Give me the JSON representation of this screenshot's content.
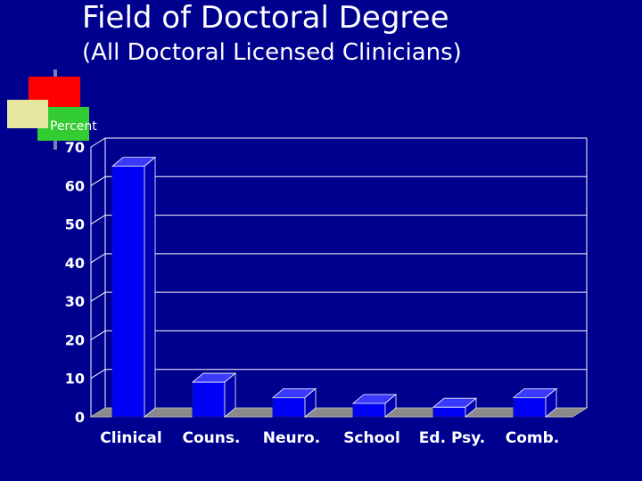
{
  "slide": {
    "title": "Field of Doctoral Degree",
    "subtitle": "(All Doctoral Licensed Clinicians)"
  },
  "colors": {
    "background": "#00008f",
    "bar_front": "#0000f5",
    "bar_top": "#3a3aff",
    "bar_side": "#0000b0",
    "floor": "#8a8a8a",
    "logo_red": "#ff0000",
    "logo_yellow": "#ffff66",
    "logo_green": "#33cc33"
  },
  "chart_data": {
    "type": "bar",
    "title": "",
    "xlabel": "",
    "ylabel": "Percent",
    "categories": [
      "Clinical",
      "Couns.",
      "Neuro.",
      "School",
      "Ed. Psy.",
      "Comb."
    ],
    "values": [
      65,
      9,
      5,
      3.5,
      2.5,
      5
    ],
    "ylim": [
      0,
      70
    ],
    "yticks": [
      0,
      10,
      20,
      30,
      40,
      50,
      60,
      70
    ],
    "grid": true,
    "legend": "none"
  }
}
